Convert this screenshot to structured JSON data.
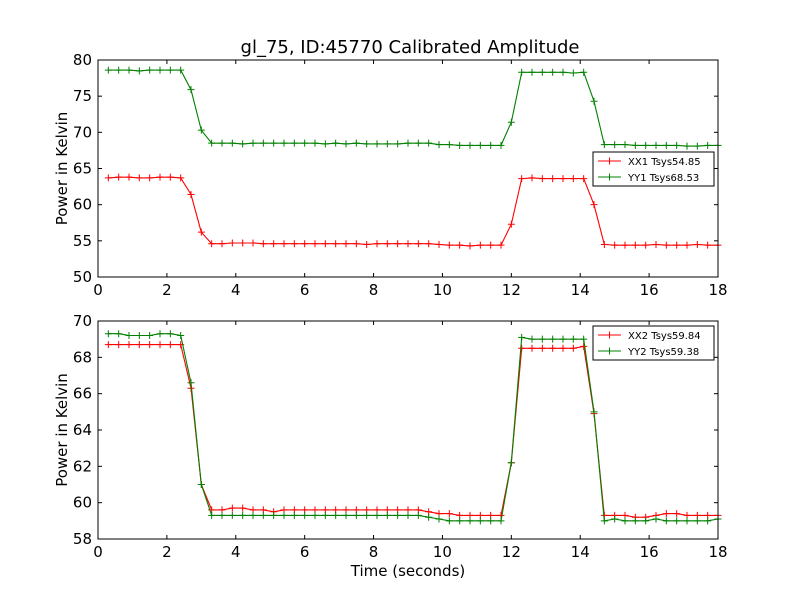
{
  "title": "gl_75, ID:45770 Calibrated Amplitude",
  "chart_data": [
    {
      "type": "line",
      "ylabel": "Power in Kelvin",
      "xlabel": "",
      "xlim": [
        0,
        18
      ],
      "ylim": [
        50,
        80
      ],
      "xticks": [
        0,
        2,
        4,
        6,
        8,
        10,
        12,
        14,
        16,
        18
      ],
      "yticks": [
        50,
        55,
        60,
        65,
        70,
        75,
        80
      ],
      "legend_position": "center-right",
      "x": [
        0.3,
        0.6,
        0.9,
        1.2,
        1.5,
        1.8,
        2.1,
        2.4,
        2.7,
        3.0,
        3.3,
        3.6,
        3.9,
        4.2,
        4.5,
        4.8,
        5.1,
        5.4,
        5.7,
        6.0,
        6.3,
        6.6,
        6.9,
        7.2,
        7.5,
        7.8,
        8.1,
        8.4,
        8.7,
        9.0,
        9.3,
        9.6,
        9.9,
        10.2,
        10.5,
        10.8,
        11.1,
        11.4,
        11.7,
        12.0,
        12.3,
        12.6,
        12.9,
        13.2,
        13.5,
        13.8,
        14.1,
        14.4,
        14.7,
        15.0,
        15.3,
        15.6,
        15.9,
        16.2,
        16.5,
        16.8,
        17.1,
        17.4,
        17.7,
        18.0
      ],
      "series": [
        {
          "name": "XX1 Tsys54.85",
          "color": "#ff0000",
          "values": [
            63.7,
            63.8,
            63.8,
            63.7,
            63.7,
            63.8,
            63.8,
            63.7,
            61.4,
            56.2,
            54.6,
            54.6,
            54.7,
            54.7,
            54.7,
            54.6,
            54.6,
            54.6,
            54.6,
            54.6,
            54.6,
            54.6,
            54.6,
            54.6,
            54.6,
            54.5,
            54.6,
            54.6,
            54.6,
            54.6,
            54.6,
            54.6,
            54.5,
            54.4,
            54.4,
            54.3,
            54.4,
            54.4,
            54.4,
            57.3,
            63.6,
            63.7,
            63.6,
            63.6,
            63.6,
            63.6,
            63.6,
            60.0,
            54.5,
            54.4,
            54.4,
            54.4,
            54.4,
            54.5,
            54.4,
            54.4,
            54.4,
            54.5,
            54.4,
            54.4
          ]
        },
        {
          "name": "YY1 Tsys68.53",
          "color": "#008000",
          "values": [
            78.6,
            78.6,
            78.6,
            78.5,
            78.6,
            78.6,
            78.6,
            78.6,
            75.9,
            70.3,
            68.5,
            68.5,
            68.5,
            68.4,
            68.5,
            68.5,
            68.5,
            68.5,
            68.5,
            68.5,
            68.5,
            68.4,
            68.5,
            68.4,
            68.5,
            68.4,
            68.4,
            68.4,
            68.4,
            68.5,
            68.5,
            68.5,
            68.3,
            68.3,
            68.2,
            68.2,
            68.2,
            68.2,
            68.2,
            71.4,
            78.3,
            78.3,
            78.3,
            78.3,
            78.3,
            78.2,
            78.3,
            74.3,
            68.3,
            68.3,
            68.3,
            68.2,
            68.2,
            68.2,
            68.2,
            68.2,
            68.1,
            68.1,
            68.2,
            68.2
          ]
        }
      ]
    },
    {
      "type": "line",
      "ylabel": "Power in Kelvin",
      "xlabel": "Time (seconds)",
      "xlim": [
        0,
        18
      ],
      "ylim": [
        58,
        70
      ],
      "xticks": [
        0,
        2,
        4,
        6,
        8,
        10,
        12,
        14,
        16,
        18
      ],
      "yticks": [
        58,
        60,
        62,
        64,
        66,
        68,
        70
      ],
      "legend_position": "top-right",
      "x": [
        0.3,
        0.6,
        0.9,
        1.2,
        1.5,
        1.8,
        2.1,
        2.4,
        2.7,
        3.0,
        3.3,
        3.6,
        3.9,
        4.2,
        4.5,
        4.8,
        5.1,
        5.4,
        5.7,
        6.0,
        6.3,
        6.6,
        6.9,
        7.2,
        7.5,
        7.8,
        8.1,
        8.4,
        8.7,
        9.0,
        9.3,
        9.6,
        9.9,
        10.2,
        10.5,
        10.8,
        11.1,
        11.4,
        11.7,
        12.0,
        12.3,
        12.6,
        12.9,
        13.2,
        13.5,
        13.8,
        14.1,
        14.4,
        14.7,
        15.0,
        15.3,
        15.6,
        15.9,
        16.2,
        16.5,
        16.8,
        17.1,
        17.4,
        17.7,
        18.0
      ],
      "series": [
        {
          "name": "XX2 Tsys59.84",
          "color": "#ff0000",
          "values": [
            68.7,
            68.7,
            68.7,
            68.7,
            68.7,
            68.7,
            68.7,
            68.7,
            66.3,
            61.0,
            59.6,
            59.6,
            59.7,
            59.7,
            59.6,
            59.6,
            59.5,
            59.6,
            59.6,
            59.6,
            59.6,
            59.6,
            59.6,
            59.6,
            59.6,
            59.6,
            59.6,
            59.6,
            59.6,
            59.6,
            59.6,
            59.5,
            59.4,
            59.4,
            59.3,
            59.3,
            59.3,
            59.3,
            59.3,
            62.2,
            68.5,
            68.5,
            68.5,
            68.5,
            68.5,
            68.5,
            68.6,
            64.9,
            59.3,
            59.3,
            59.3,
            59.2,
            59.2,
            59.3,
            59.4,
            59.4,
            59.3,
            59.3,
            59.3,
            59.3
          ]
        },
        {
          "name": "YY2 Tsys59.38",
          "color": "#008000",
          "values": [
            69.3,
            69.3,
            69.2,
            69.2,
            69.2,
            69.3,
            69.3,
            69.2,
            66.6,
            61.0,
            59.3,
            59.3,
            59.3,
            59.3,
            59.3,
            59.3,
            59.3,
            59.3,
            59.3,
            59.3,
            59.3,
            59.3,
            59.3,
            59.3,
            59.3,
            59.3,
            59.3,
            59.3,
            59.3,
            59.3,
            59.3,
            59.2,
            59.1,
            59.0,
            59.0,
            59.0,
            59.0,
            59.0,
            59.0,
            62.2,
            69.1,
            69.0,
            69.0,
            69.0,
            69.0,
            69.0,
            69.0,
            65.0,
            59.0,
            59.1,
            59.0,
            59.0,
            59.0,
            59.1,
            59.0,
            59.0,
            59.0,
            59.0,
            59.0,
            59.1
          ]
        }
      ]
    }
  ]
}
